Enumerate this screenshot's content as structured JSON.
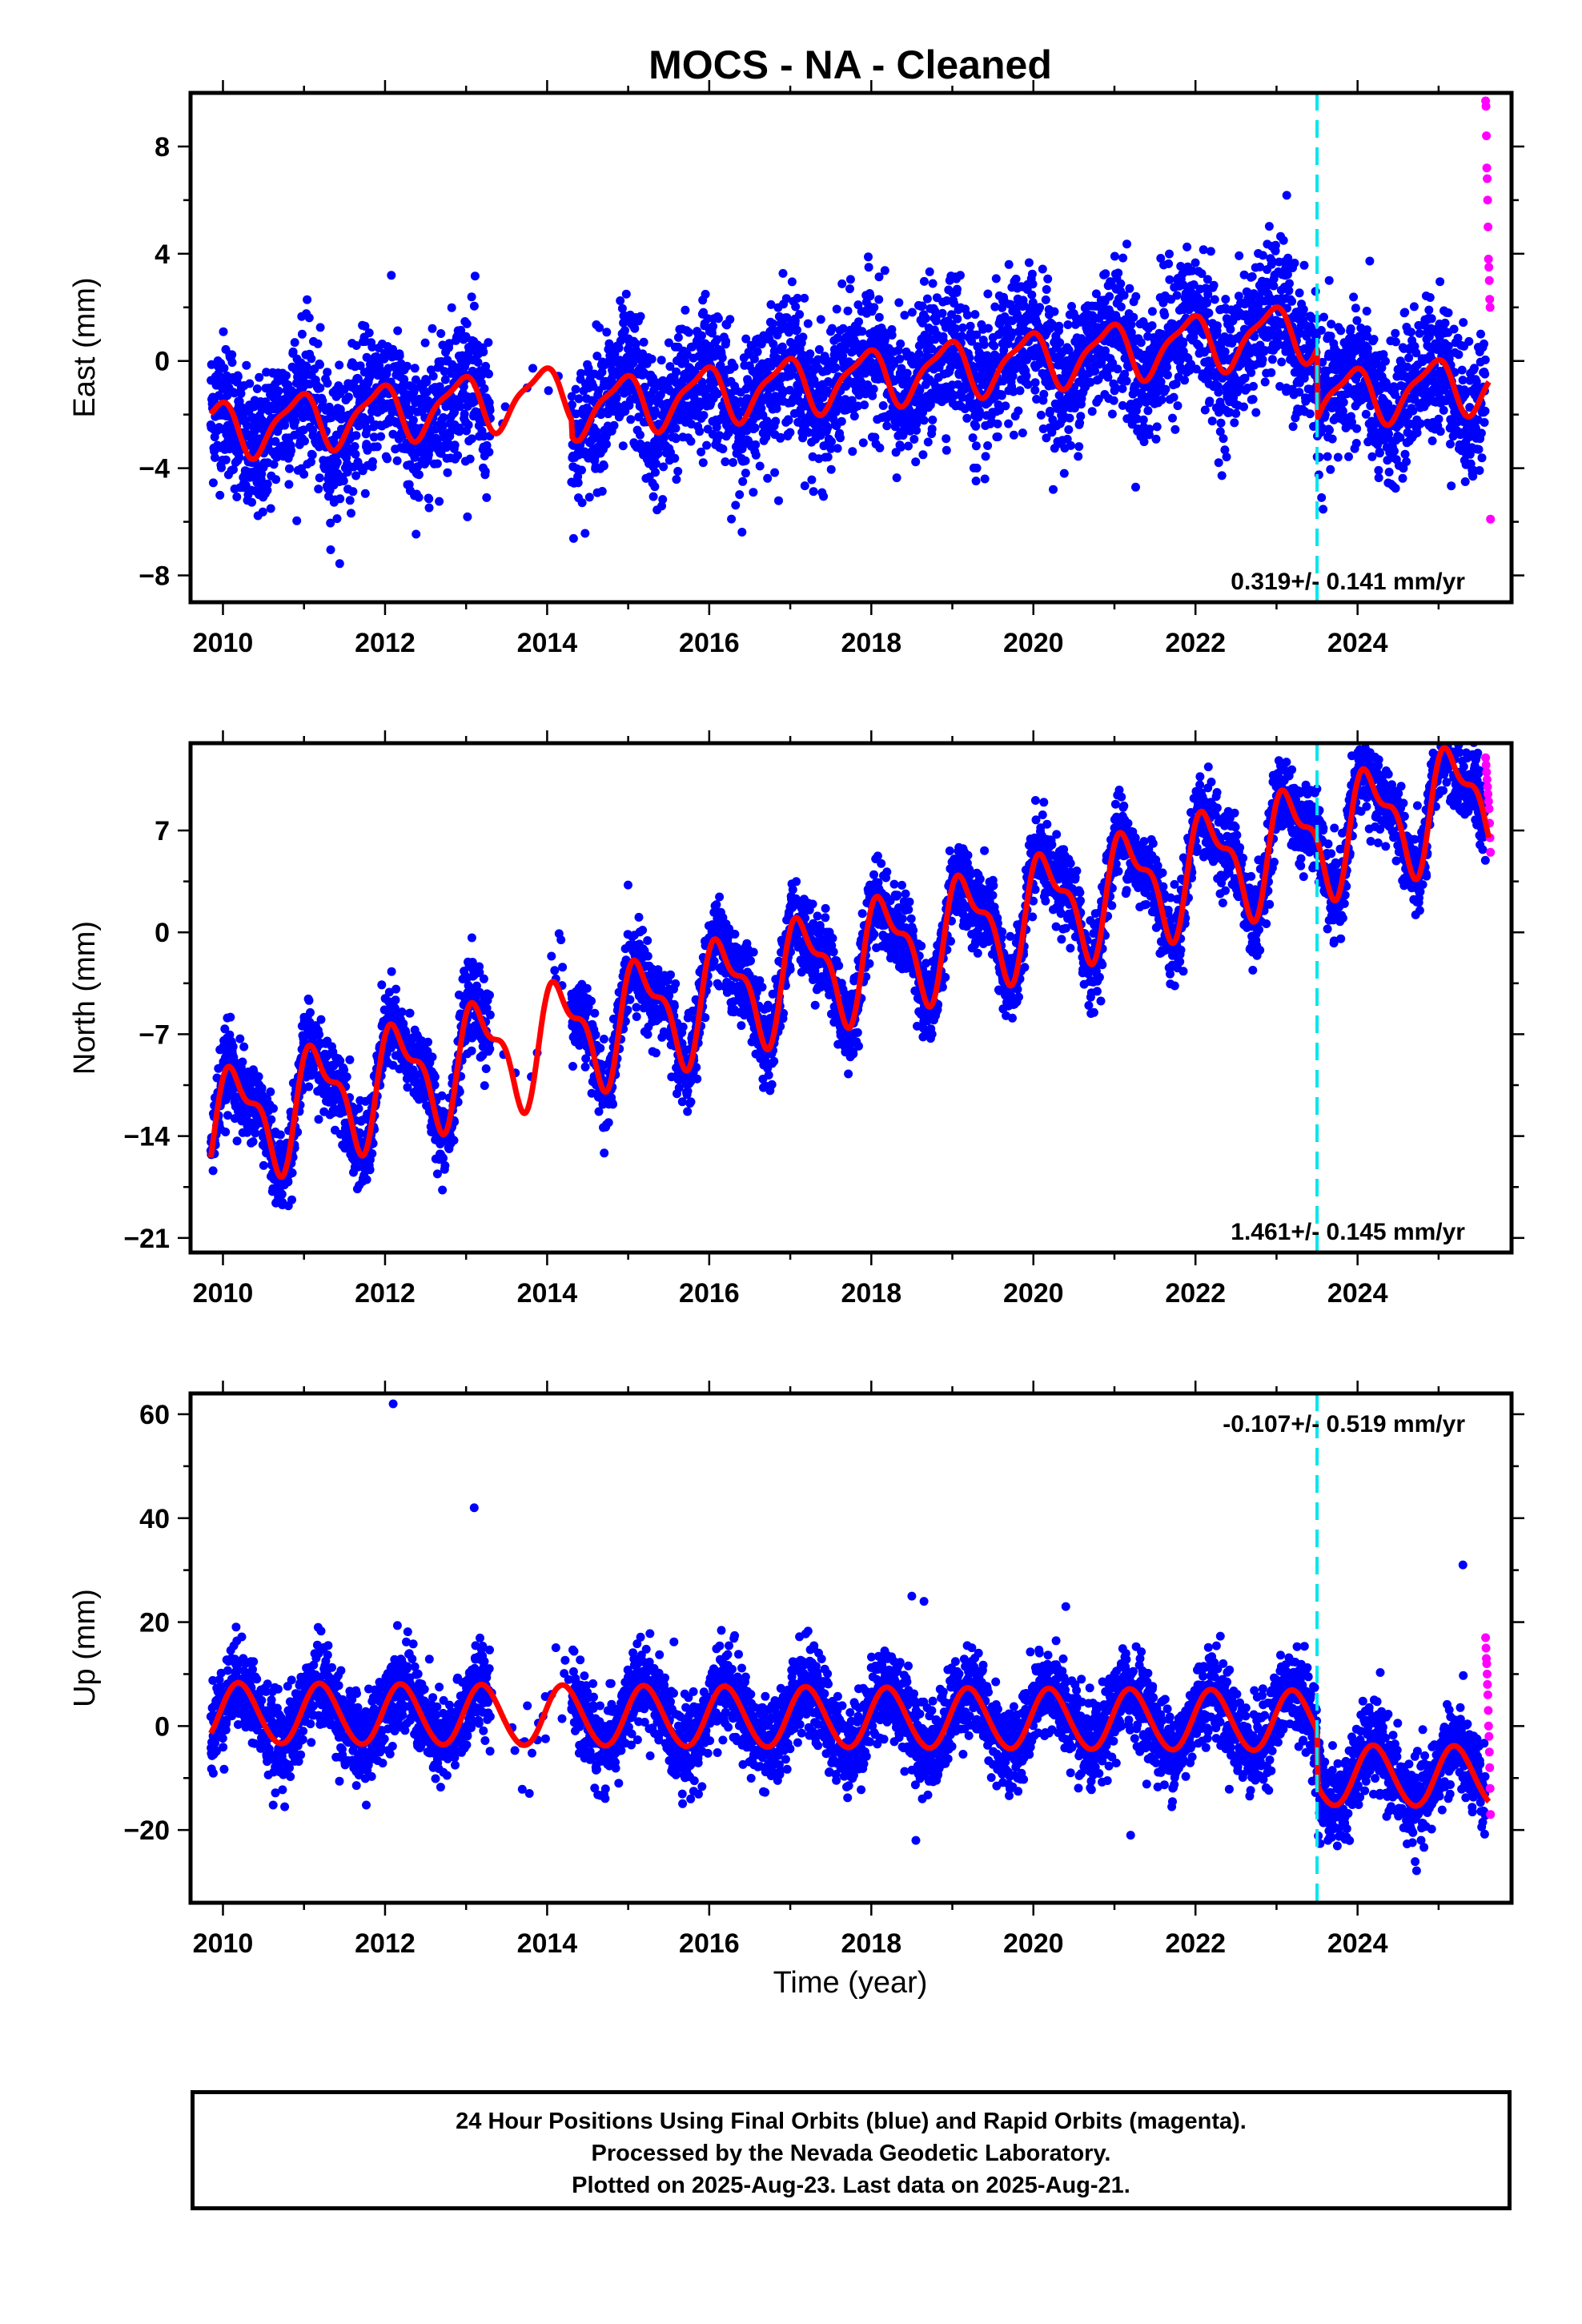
{
  "title": "MOCS  - NA - Cleaned",
  "x_axis_label": "Time (year)",
  "footer": {
    "line1": "24 Hour Positions Using Final Orbits (blue) and Rapid Orbits (magenta).",
    "line2": "Processed by the Nevada Geodetic Laboratory.",
    "line3": "Plotted on 2025-Aug-23. Last data on 2025-Aug-21."
  },
  "colors": {
    "final_orbits": "#0000ff",
    "rapid_orbits": "#ff00ff",
    "model": "#ff0000",
    "offset_line": "#00e5ee"
  },
  "chart_data": [
    {
      "type": "scatter",
      "ylabel": "East (mm)",
      "rate_text": "0.319+/- 0.141 mm/yr",
      "xlim": [
        2009.6,
        2025.9
      ],
      "ylim": [
        -9,
        10
      ],
      "xticks": [
        2010,
        2012,
        2014,
        2016,
        2018,
        2020,
        2022,
        2024
      ],
      "yticks": [
        -8,
        -4,
        0,
        4,
        8
      ],
      "offset_epoch": 2023.5,
      "model": {
        "start": 2009.85,
        "end": 2025.62,
        "ref_epoch": 2018,
        "ref_value": 0.0,
        "rate": 0.319,
        "annual_amp": 1.0,
        "annual_phase": 2.1,
        "semiannual_amp": 0.3,
        "semiannual_phase": 0.5,
        "offsets": [
          {
            "epoch": 2014.3,
            "jump": -0.6
          },
          {
            "epoch": 2023.5,
            "jump": -2.6
          }
        ]
      },
      "final_orbits": {
        "start": 2009.85,
        "end": 2025.58,
        "noise_sigma": 1.3,
        "gaps": [
          [
            2013.3,
            2014.3
          ]
        ]
      },
      "rapid_orbits": {
        "start": 2025.58,
        "end": 2025.64,
        "values": [
          9.7,
          9.5,
          8.4,
          7.2,
          6.8,
          6.0,
          5.0,
          3.8,
          3.5,
          3.0,
          2.3,
          2.0,
          -5.9
        ]
      }
    },
    {
      "type": "scatter",
      "ylabel": "North (mm)",
      "rate_text": "1.461+/- 0.145 mm/yr",
      "xlim": [
        2009.6,
        2025.9
      ],
      "ylim": [
        -22,
        13
      ],
      "xticks": [
        2010,
        2012,
        2014,
        2016,
        2018,
        2020,
        2022,
        2024
      ],
      "yticks": [
        -21,
        -14,
        -7,
        0,
        7
      ],
      "offset_epoch": 2023.5,
      "model": {
        "start": 2009.85,
        "end": 2025.62,
        "ref_epoch": 2018,
        "ref_value": -1.5,
        "rate": 1.461,
        "annual_amp": 3.5,
        "annual_phase": 0.5,
        "semiannual_amp": 1.5,
        "semiannual_phase": 1.5,
        "offsets": []
      },
      "final_orbits": {
        "start": 2009.85,
        "end": 2025.58,
        "noise_sigma": 1.4,
        "gaps": [
          [
            2013.3,
            2014.3
          ]
        ]
      },
      "rapid_orbits": {
        "start": 2025.58,
        "end": 2025.64,
        "values": [
          12,
          11.5,
          11,
          10.5,
          10,
          9.5,
          9,
          8.5,
          7.5,
          6.5,
          5.5
        ]
      }
    },
    {
      "type": "scatter",
      "ylabel": "Up (mm)",
      "rate_text": "-0.107+/- 0.519 mm/yr",
      "xlim": [
        2009.6,
        2025.9
      ],
      "ylim": [
        -34,
        64
      ],
      "xticks": [
        2010,
        2012,
        2014,
        2016,
        2018,
        2020,
        2022,
        2024
      ],
      "yticks": [
        -20,
        0,
        20,
        40,
        60
      ],
      "offset_epoch": 2023.5,
      "model": {
        "start": 2009.85,
        "end": 2025.62,
        "ref_epoch": 2018,
        "ref_value": 1.5,
        "rate": -0.107,
        "annual_amp": 5.8,
        "annual_phase": 0.3,
        "semiannual_amp": 0.3,
        "semiannual_phase": 0.0,
        "offsets": [
          {
            "epoch": 2023.5,
            "jump": -10.5
          }
        ]
      },
      "final_orbits": {
        "start": 2009.85,
        "end": 2025.58,
        "noise_sigma": 4.2,
        "gaps": [
          [
            2013.3,
            2014.3
          ]
        ],
        "outliers": [
          [
            2012.1,
            62
          ],
          [
            2013.1,
            42
          ],
          [
            2025.3,
            31
          ],
          [
            2018.5,
            25
          ],
          [
            2018.65,
            24
          ],
          [
            2020.4,
            23
          ],
          [
            2018.55,
            -22
          ],
          [
            2021.2,
            -21
          ]
        ]
      },
      "rapid_orbits": {
        "start": 2025.58,
        "end": 2025.64,
        "values": [
          17,
          15,
          13,
          12,
          10,
          8,
          6,
          3,
          0,
          -2,
          -5,
          -8,
          -12,
          -17
        ]
      }
    }
  ]
}
